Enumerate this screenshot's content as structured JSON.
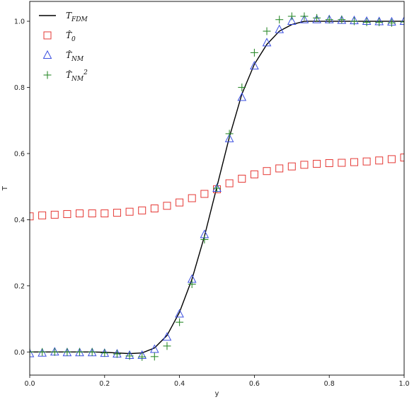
{
  "chart_data": {
    "type": "line",
    "xlabel": "y",
    "ylabel": "T",
    "xlim": [
      0.0,
      1.0
    ],
    "ylim": [
      -0.07,
      1.06
    ],
    "x_ticks": [
      0.0,
      0.2,
      0.4,
      0.6,
      0.8,
      1.0
    ],
    "x_tick_labels": [
      "0.0",
      "0.2",
      "0.4",
      "0.6",
      "0.8",
      "1.0"
    ],
    "y_ticks": [
      0.0,
      0.2,
      0.4,
      0.6,
      0.8,
      1.0
    ],
    "y_tick_labels": [
      "0.0",
      "0.2",
      "0.4",
      "0.6",
      "0.8",
      "1.0"
    ],
    "grid": false,
    "legend_position": "top-left",
    "series": [
      {
        "name": "T_FDM",
        "label_parts": [
          "T",
          "FDM",
          ""
        ],
        "style": "line",
        "color": "#000000",
        "x": [
          0.0,
          0.0333,
          0.0667,
          0.1,
          0.1333,
          0.1667,
          0.2,
          0.2333,
          0.2667,
          0.3,
          0.3333,
          0.3667,
          0.4,
          0.4333,
          0.4667,
          0.5,
          0.5333,
          0.5667,
          0.6,
          0.6333,
          0.6667,
          0.7,
          0.7333,
          0.7667,
          0.8,
          0.8333,
          0.8667,
          0.9,
          0.9333,
          0.9667,
          1.0
        ],
        "y": [
          0.0,
          0.0,
          0.0,
          0.0,
          0.0,
          0.0,
          -0.001,
          -0.003,
          -0.005,
          -0.003,
          0.012,
          0.05,
          0.12,
          0.22,
          0.35,
          0.5,
          0.65,
          0.78,
          0.87,
          0.93,
          0.97,
          0.99,
          1.0,
          1.0,
          1.0,
          1.0,
          1.0,
          1.0,
          1.0,
          1.0,
          1.0
        ]
      },
      {
        "name": "T0_hat",
        "label_parts": [
          "T̂",
          "0",
          ""
        ],
        "style": "square",
        "color": "#e53935",
        "x": [
          0.0,
          0.0333,
          0.0667,
          0.1,
          0.1333,
          0.1667,
          0.2,
          0.2333,
          0.2667,
          0.3,
          0.3333,
          0.3667,
          0.4,
          0.4333,
          0.4667,
          0.5,
          0.5333,
          0.5667,
          0.6,
          0.6333,
          0.6667,
          0.7,
          0.7333,
          0.7667,
          0.8,
          0.8333,
          0.8667,
          0.9,
          0.9333,
          0.9667,
          1.0
        ],
        "y": [
          0.41,
          0.413,
          0.415,
          0.417,
          0.419,
          0.419,
          0.419,
          0.421,
          0.424,
          0.428,
          0.434,
          0.442,
          0.452,
          0.465,
          0.478,
          0.492,
          0.51,
          0.524,
          0.537,
          0.547,
          0.555,
          0.561,
          0.566,
          0.569,
          0.571,
          0.572,
          0.574,
          0.576,
          0.579,
          0.583,
          0.588
        ]
      },
      {
        "name": "TNM_hat",
        "label_parts": [
          "T̂",
          "NM",
          ""
        ],
        "style": "triangle",
        "color": "#3b4fe0",
        "x": [
          0.0,
          0.0333,
          0.0667,
          0.1,
          0.1333,
          0.1667,
          0.2,
          0.2333,
          0.2667,
          0.3,
          0.3333,
          0.3667,
          0.4,
          0.4333,
          0.4667,
          0.5,
          0.5333,
          0.5667,
          0.6,
          0.6333,
          0.6667,
          0.7,
          0.7333,
          0.7667,
          0.8,
          0.8333,
          0.8667,
          0.9,
          0.9333,
          0.9667,
          1.0
        ],
        "y": [
          -0.005,
          -0.003,
          0.0,
          -0.002,
          -0.002,
          -0.002,
          -0.004,
          -0.006,
          -0.01,
          -0.01,
          0.008,
          0.045,
          0.115,
          0.22,
          0.355,
          0.495,
          0.645,
          0.77,
          0.865,
          0.935,
          0.975,
          1.0,
          1.005,
          1.005,
          1.005,
          1.003,
          1.002,
          1.0,
          0.999,
          0.998,
          1.0
        ]
      },
      {
        "name": "TNM_hat_sq",
        "label_parts": [
          "T̂",
          "NM",
          "2"
        ],
        "style": "plus",
        "color": "#2e8b2e",
        "x": [
          0.0,
          0.0333,
          0.0667,
          0.1,
          0.1333,
          0.1667,
          0.2,
          0.2333,
          0.2667,
          0.3,
          0.3333,
          0.3667,
          0.4,
          0.4333,
          0.4667,
          0.5,
          0.5333,
          0.5667,
          0.6,
          0.6333,
          0.6667,
          0.7,
          0.7333,
          0.7667,
          0.8,
          0.8333,
          0.8667,
          0.9,
          0.9333,
          0.9667,
          1.0
        ],
        "y": [
          0.0,
          0.0,
          0.0,
          0.0,
          0.0,
          0.0,
          -0.003,
          -0.006,
          -0.012,
          -0.015,
          -0.014,
          0.018,
          0.09,
          0.205,
          0.34,
          0.495,
          0.66,
          0.8,
          0.905,
          0.97,
          1.005,
          1.015,
          1.015,
          1.01,
          1.005,
          1.005,
          1.0,
          0.997,
          0.997,
          0.995,
          0.998
        ]
      }
    ]
  }
}
